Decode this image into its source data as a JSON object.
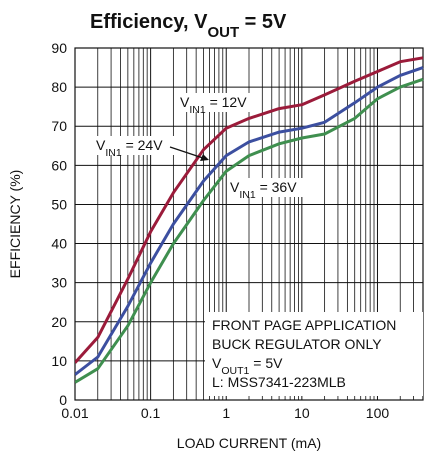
{
  "chart_data": {
    "type": "line",
    "title": [
      "Efficiency, V",
      "OUT",
      " = 5V"
    ],
    "xlabel": "LOAD CURRENT (mA)",
    "ylabel": "EFFICIENCY (%)",
    "log_x": true,
    "grid": true,
    "x": [
      0.01,
      0.02,
      0.05,
      0.1,
      0.2,
      0.5,
      1,
      2,
      5,
      10,
      20,
      50,
      100,
      200,
      400
    ],
    "series": [
      {
        "name": [
          "V",
          "IN1",
          " = 12V"
        ],
        "color": "#9b1b3a",
        "values": [
          9.5,
          16,
          31,
          43,
          53,
          64,
          69.5,
          72,
          74.5,
          75.5,
          78,
          81.5,
          84,
          86.5,
          87.5
        ]
      },
      {
        "name": [
          "V",
          "IN1",
          " = 24V"
        ],
        "color": "#3c4fa0",
        "values": [
          6.5,
          11,
          24,
          35,
          45,
          56,
          62.5,
          66,
          68.5,
          69.5,
          71,
          76,
          80,
          83,
          85
        ]
      },
      {
        "name": [
          "V",
          "IN1",
          " = 36V"
        ],
        "color": "#3f8f4f",
        "values": [
          4.5,
          8,
          19,
          30,
          40,
          51,
          58.5,
          62.5,
          65.5,
          67,
          68,
          72,
          77,
          80,
          82
        ]
      }
    ],
    "xlim": [
      0.01,
      400
    ],
    "xticks": [
      0.01,
      0.1,
      1,
      10,
      100
    ],
    "ylim": [
      0,
      90
    ],
    "yticks": [
      0,
      10,
      20,
      30,
      40,
      50,
      60,
      70,
      80,
      90
    ],
    "note": [
      [
        "FRONT PAGE APPLICATION"
      ],
      [
        "BUCK REGULATOR ONLY"
      ],
      [
        "V",
        "OUT1",
        " = 5V"
      ],
      [
        "L: MSS7341-223MLB"
      ]
    ]
  }
}
